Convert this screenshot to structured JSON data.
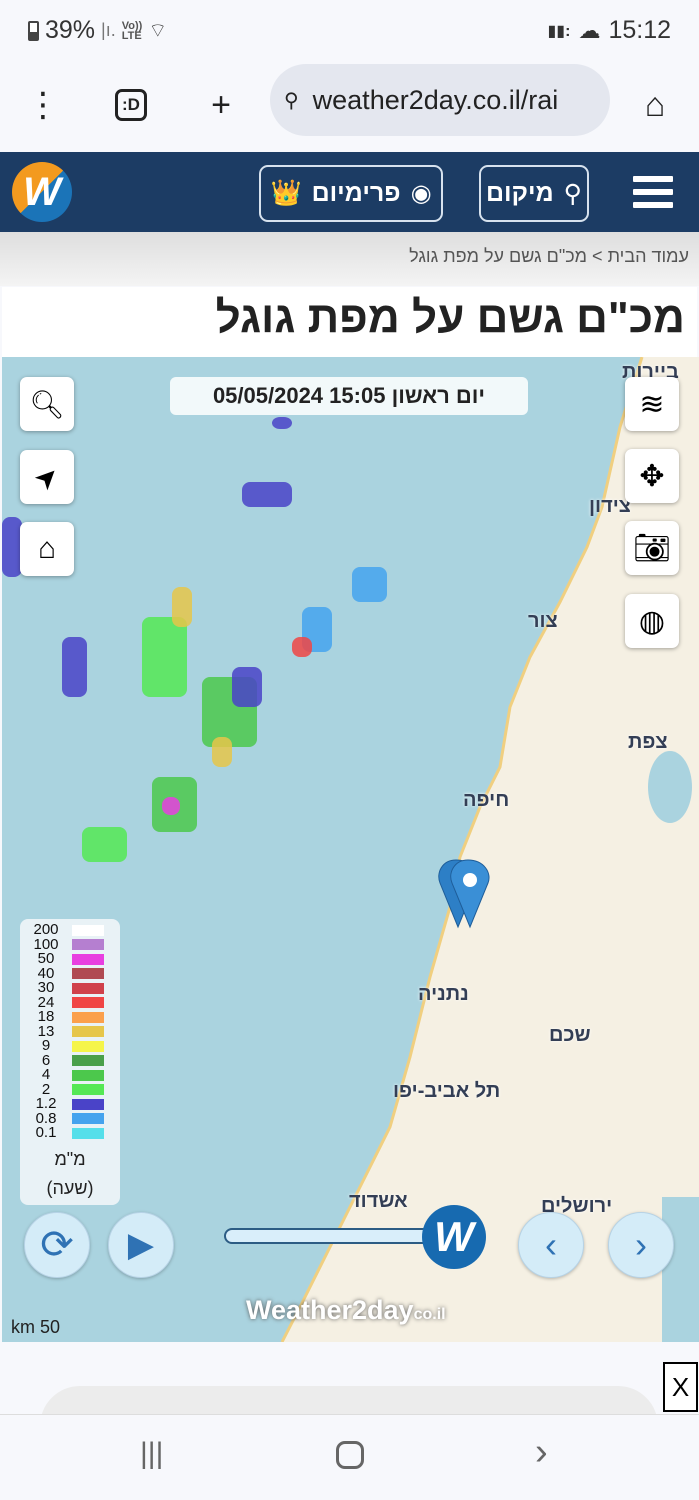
{
  "status_bar": {
    "battery": "39%",
    "network": "LTE",
    "voice": "Vo))",
    "time": "15:12"
  },
  "browser": {
    "url": "weather2day.co.il/rai",
    "tab_label": ":D"
  },
  "nav": {
    "premium_label": "פרימיום",
    "location_label": "מיקום"
  },
  "breadcrumb": {
    "home": "עמוד הבית",
    "separator": ">",
    "current": "מכ\"ם גשם על מפת גוגל"
  },
  "page_title": "מכ\"ם גשם על מפת גוגל",
  "map": {
    "timestamp": "יום ראשון 15:05 05/05/2024",
    "cities": [
      "ביירות",
      "צידון",
      "צור",
      "צפת",
      "חיפה",
      "נתניה",
      "שכם",
      "תל אביב-יפו",
      "אשדוד",
      "ירושלים"
    ],
    "scale": "km 50",
    "watermark": "Weather2day",
    "watermark_suffix": "co.il",
    "slider_progress": 1.0
  },
  "legend": {
    "items": [
      {
        "label": "200",
        "color": "#ffffff"
      },
      {
        "label": "100",
        "color": "#b57fd0"
      },
      {
        "label": "50",
        "color": "#e83fe0"
      },
      {
        "label": "40",
        "color": "#b04a52"
      },
      {
        "label": "30",
        "color": "#d0414b"
      },
      {
        "label": "24",
        "color": "#f04545"
      },
      {
        "label": "18",
        "color": "#fba04c"
      },
      {
        "label": "13",
        "color": "#e6c64a"
      },
      {
        "label": "9",
        "color": "#f5f54a"
      },
      {
        "label": "6",
        "color": "#4aa04a"
      },
      {
        "label": "4",
        "color": "#4cc84c"
      },
      {
        "label": "2",
        "color": "#55e855"
      },
      {
        "label": "1.2",
        "color": "#4a43c8"
      },
      {
        "label": "0.8",
        "color": "#45a3ee"
      },
      {
        "label": "0.1",
        "color": "#55dfea"
      }
    ],
    "unit": "מ\"מ",
    "period": "(שעה)"
  },
  "ad": {
    "close_label": "X"
  },
  "colors": {
    "nav": "#1c3c64",
    "sea": "#aad3df",
    "land": "#f5f0e3",
    "accent": "#176ab0"
  }
}
